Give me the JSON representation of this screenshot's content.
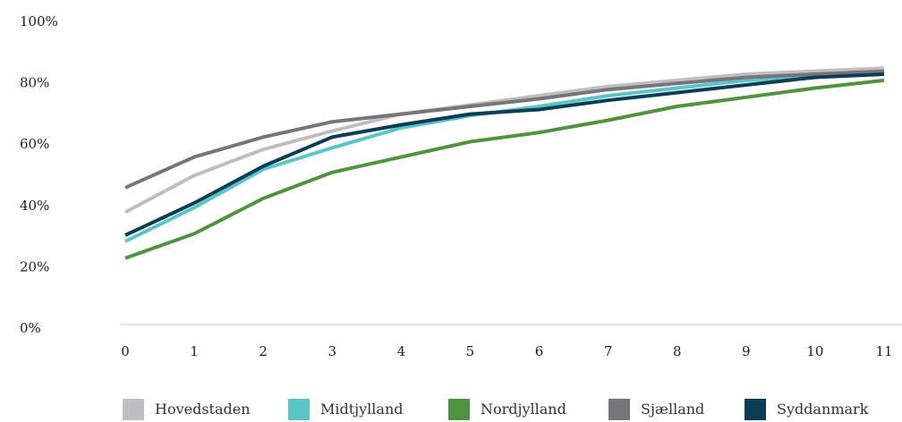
{
  "chart_data": {
    "type": "line",
    "title": "",
    "xlabel": "",
    "ylabel": "",
    "x": [
      0,
      1,
      2,
      3,
      4,
      5,
      6,
      7,
      8,
      9,
      10,
      11
    ],
    "x_tick_labels": [
      "0",
      "1",
      "2",
      "3",
      "4",
      "5",
      "6",
      "7",
      "8",
      "9",
      "10",
      "11"
    ],
    "ylim": [
      0,
      100
    ],
    "y_ticks": [
      0,
      20,
      40,
      60,
      80,
      100
    ],
    "y_tick_labels": [
      "0%",
      "20%",
      "40%",
      "60%",
      "80%",
      "100%"
    ],
    "grid": false,
    "legend_position": "bottom",
    "series": [
      {
        "name": "Hovedstaden",
        "color": "#bebec2",
        "values": [
          37.5,
          49.5,
          58,
          64,
          69.5,
          72.5,
          75.5,
          78.5,
          80.5,
          82.5,
          83.5,
          84.5
        ]
      },
      {
        "name": "Midtjylland",
        "color": "#5bc5c5",
        "values": [
          28,
          39,
          51.5,
          58.5,
          65,
          69,
          72,
          75.5,
          78,
          80.5,
          82,
          83
        ]
      },
      {
        "name": "Nordjylland",
        "color": "#4f923f",
        "values": [
          22.5,
          30.5,
          42,
          50.5,
          55.5,
          60.5,
          63.5,
          67.5,
          72,
          75,
          78,
          80.5
        ]
      },
      {
        "name": "Sjælland",
        "color": "#76767a",
        "values": [
          45.5,
          55.5,
          62,
          67,
          69.5,
          72,
          74.5,
          77.5,
          79.5,
          81.5,
          82.5,
          83.5
        ]
      },
      {
        "name": "Syddanmark",
        "color": "#0b3d57",
        "values": [
          30,
          40.5,
          52.5,
          62,
          66,
          69.5,
          71,
          74,
          76.5,
          79,
          81.5,
          82.5
        ]
      }
    ]
  }
}
